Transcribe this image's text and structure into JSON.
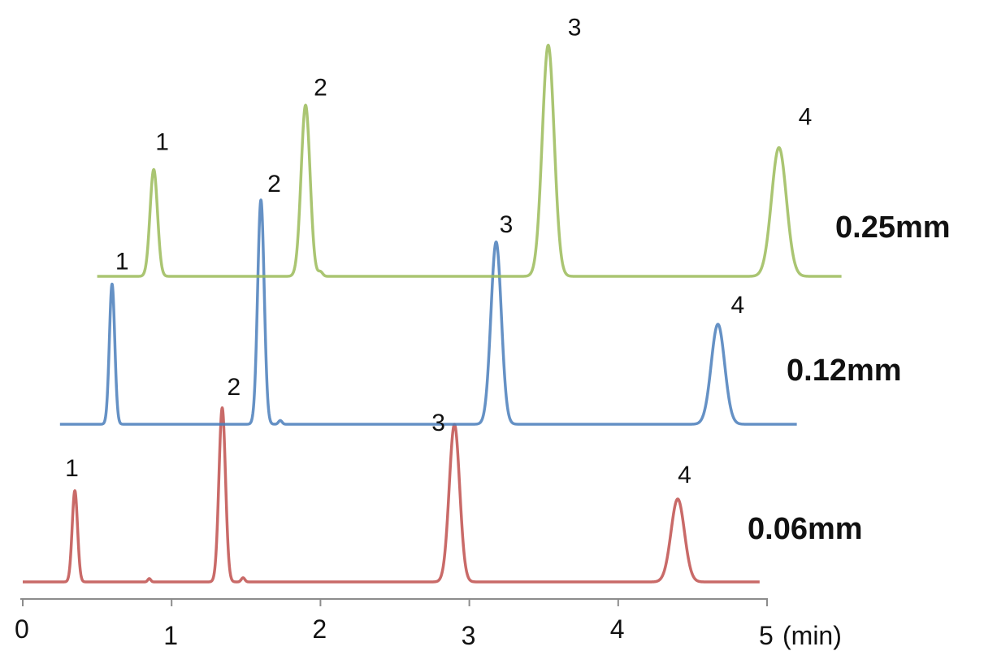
{
  "chart_data": {
    "type": "line",
    "xlabel": "(min)",
    "xlim": [
      0,
      5
    ],
    "x_ticks": [
      "0",
      "1",
      "2",
      "3",
      "4",
      "5"
    ],
    "series": [
      {
        "name": "0.06mm",
        "color": "#c0504d",
        "x_range": [
          0,
          4.95
        ],
        "baseline": 0,
        "peaks": [
          {
            "label": "1",
            "x": 0.35,
            "height": 1.1,
            "width": 0.018
          },
          {
            "label": "2",
            "x": 1.34,
            "height": 2.1,
            "width": 0.022
          },
          {
            "label": "3",
            "x": 2.9,
            "height": 1.9,
            "width": 0.035
          },
          {
            "label": "4",
            "x": 4.4,
            "height": 1.0,
            "width": 0.045
          }
        ],
        "minor_peaks": [
          {
            "x": 0.85,
            "height": 0.04,
            "width": 0.01
          },
          {
            "x": 1.48,
            "height": 0.05,
            "width": 0.012
          }
        ]
      },
      {
        "name": "0.12mm",
        "color": "#4a7ebb",
        "x_range": [
          0.25,
          5.2
        ],
        "baseline": 0,
        "peaks": [
          {
            "label": "1",
            "x": 0.6,
            "height": 1.5,
            "width": 0.018
          },
          {
            "label": "2",
            "x": 1.6,
            "height": 2.4,
            "width": 0.022
          },
          {
            "label": "3",
            "x": 3.18,
            "height": 1.95,
            "width": 0.035
          },
          {
            "label": "4",
            "x": 4.67,
            "height": 1.07,
            "width": 0.045
          }
        ],
        "minor_peaks": [
          {
            "x": 1.73,
            "height": 0.04,
            "width": 0.012
          }
        ]
      },
      {
        "name": "0.25mm",
        "color": "#9bbb59",
        "x_range": [
          0.5,
          5.5
        ],
        "baseline": 0,
        "peaks": [
          {
            "label": "1",
            "x": 0.88,
            "height": 0.73,
            "width": 0.025
          },
          {
            "label": "2",
            "x": 1.9,
            "height": 1.17,
            "width": 0.03
          },
          {
            "label": "3",
            "x": 3.53,
            "height": 1.58,
            "width": 0.04
          },
          {
            "label": "4",
            "x": 5.08,
            "height": 0.88,
            "width": 0.05
          }
        ],
        "minor_peaks": [
          {
            "x": 2.0,
            "height": 0.03,
            "width": 0.015
          }
        ]
      }
    ]
  }
}
